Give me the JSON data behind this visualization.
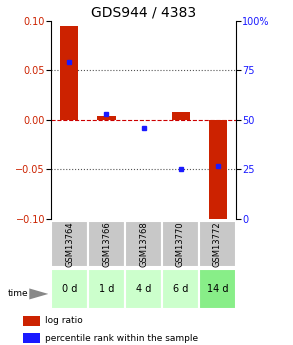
{
  "title": "GDS944 / 4383",
  "samples": [
    "GSM13764",
    "GSM13766",
    "GSM13768",
    "GSM13770",
    "GSM13772"
  ],
  "time_labels": [
    "0 d",
    "1 d",
    "4 d",
    "6 d",
    "14 d"
  ],
  "log_ratio_vals": [
    0.095,
    0.004,
    0.0,
    0.008,
    -0.115
  ],
  "percentile_vals": [
    79,
    53,
    46,
    25,
    27
  ],
  "ylim_left": [
    -0.1,
    0.1
  ],
  "ylim_right": [
    0,
    100
  ],
  "yticks_left": [
    -0.1,
    -0.05,
    0,
    0.05,
    0.1
  ],
  "yticks_right": [
    0,
    25,
    50,
    75,
    100
  ],
  "bar_color_red": "#cc2200",
  "bar_color_blue": "#1a1aff",
  "zero_line_color": "#cc0000",
  "dotted_line_color": "#555555",
  "header_bg": "#c8c8c8",
  "time_bg_colors": [
    "#ccffcc",
    "#ccffcc",
    "#ccffcc",
    "#ccffcc",
    "#88ee88"
  ],
  "title_fontsize": 10,
  "tick_fontsize": 7,
  "legend_fontsize": 6.5,
  "sample_fontsize": 6,
  "time_fontsize": 7
}
